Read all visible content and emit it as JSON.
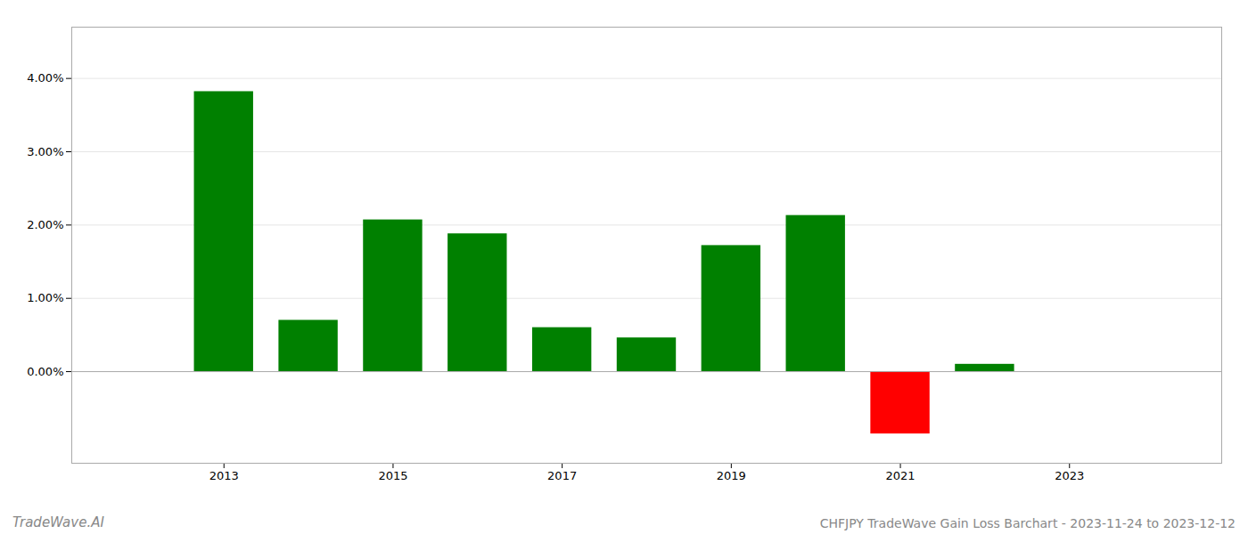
{
  "chart_data": {
    "type": "bar",
    "title": "CHFJPY TradeWave Gain Loss Barchart - 2023-11-24 to 2023-12-12",
    "annotations": [
      "TradeWave.AI"
    ],
    "x": [
      2013,
      2014,
      2015,
      2016,
      2017,
      2018,
      2019,
      2020,
      2021,
      2022
    ],
    "values": [
      0.0382,
      0.007,
      0.0207,
      0.0188,
      0.006,
      0.0046,
      0.0172,
      0.0213,
      -0.0085,
      0.001
    ],
    "colors": [
      "#008000",
      "#008000",
      "#008000",
      "#008000",
      "#008000",
      "#008000",
      "#008000",
      "#008000",
      "#ff0000",
      "#008000"
    ],
    "xlim": [
      2011.2,
      2024.8
    ],
    "xticks": [
      2013,
      2015,
      2017,
      2019,
      2021,
      2023
    ],
    "ylim": [
      -0.0125,
      0.047
    ],
    "yticks": [
      {
        "value": 0.0,
        "label": "0.00%"
      },
      {
        "value": 0.01,
        "label": "1.00%"
      },
      {
        "value": 0.02,
        "label": "2.00%"
      },
      {
        "value": 0.03,
        "label": "3.00%"
      },
      {
        "value": 0.04,
        "label": "4.00%"
      }
    ],
    "grid": "y"
  }
}
